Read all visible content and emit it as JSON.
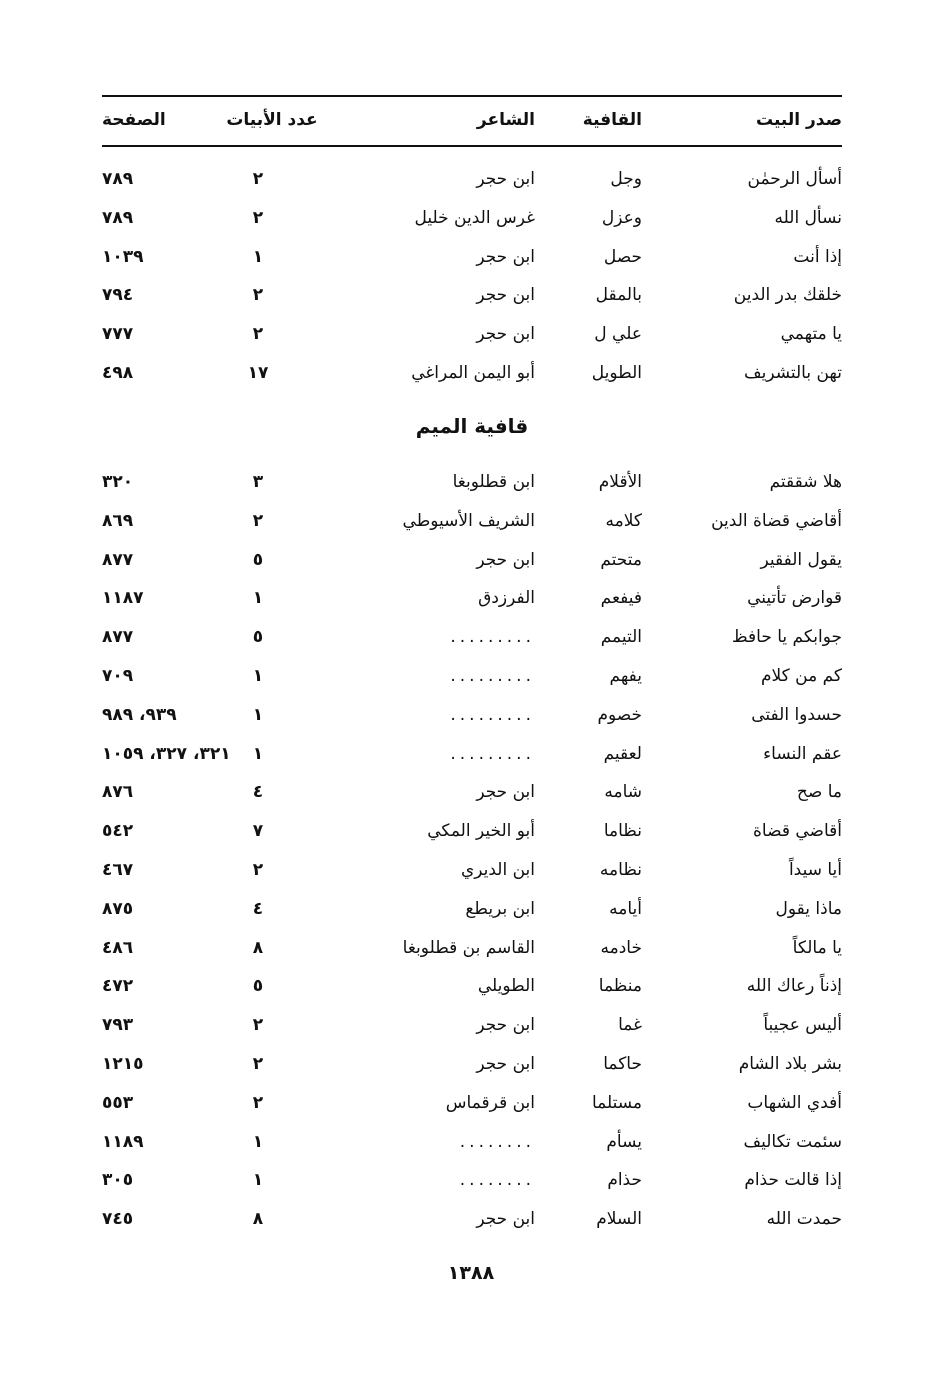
{
  "header": {
    "first_words": "صدر البيت",
    "rhyme": "القافية",
    "poet": "الشاعر",
    "verse_count": "عدد الأبيات",
    "page": "الصفحة"
  },
  "rows_a": [
    {
      "first": "أسأل الرحمٰن",
      "rhyme": "وجل",
      "poet": "ابن حجر",
      "count": "٢",
      "page": "٧٨٩"
    },
    {
      "first": "نسأل الله",
      "rhyme": "وعزل",
      "poet": "غرس الدين خليل",
      "count": "٢",
      "page": "٧٨٩"
    },
    {
      "first": "إذا أنت",
      "rhyme": "حصل",
      "poet": "ابن حجر",
      "count": "١",
      "page": "١٠٣٩"
    },
    {
      "first": "خلقك بدر الدين",
      "rhyme": "بالمقل",
      "poet": "ابن حجر",
      "count": "٢",
      "page": "٧٩٤"
    },
    {
      "first": "يا متهمي",
      "rhyme": "علي ل",
      "poet": "ابن حجر",
      "count": "٢",
      "page": "٧٧٧"
    },
    {
      "first": "تهن بالتشريف",
      "rhyme": "الطويل",
      "poet": "أبو اليمن المراغي",
      "count": "١٧",
      "page": "٤٩٨"
    }
  ],
  "section_title": "قافية الميم",
  "rows_b": [
    {
      "first": "هلا شققتم",
      "rhyme": "الأقلام",
      "poet": "ابن قطلوبغا",
      "count": "٣",
      "page": "٣٢٠"
    },
    {
      "first": "أقاضي قضاة الدين",
      "rhyme": "كلامه",
      "poet": "الشريف الأسيوطي",
      "count": "٢",
      "page": "٨٦٩"
    },
    {
      "first": "يقول الفقير",
      "rhyme": "متحتم",
      "poet": "ابن حجر",
      "count": "٥",
      "page": "٨٧٧"
    },
    {
      "first": "قوارض تأتيني",
      "rhyme": "فيفعم",
      "poet": "الفرزدق",
      "count": "١",
      "page": "١١٨٧"
    },
    {
      "first": "جوابكم يا حافظ",
      "rhyme": "التيمم",
      "poet": ".........",
      "count": "٥",
      "page": "٨٧٧"
    },
    {
      "first": "كم من كلام",
      "rhyme": "يفهم",
      "poet": ".........",
      "count": "١",
      "page": "٧٠٩"
    },
    {
      "first": "حسدوا الفتى",
      "rhyme": "خصوم",
      "poet": ".........",
      "count": "١",
      "page": "٩٣٩، ٩٨٩"
    },
    {
      "first": "عقم النساء",
      "rhyme": "لعقيم",
      "poet": ".........",
      "count": "١",
      "page": "٣٢١، ٣٢٧، ١٠٥٩"
    },
    {
      "first": "ما صح",
      "rhyme": "شامه",
      "poet": "ابن حجر",
      "count": "٤",
      "page": "٨٧٦"
    },
    {
      "first": "أقاضي قضاة",
      "rhyme": "نظاما",
      "poet": "أبو الخير المكي",
      "count": "٧",
      "page": "٥٤٢"
    },
    {
      "first": "أيا سيداً",
      "rhyme": "نظامه",
      "poet": "ابن الديري",
      "count": "٢",
      "page": "٤٦٧"
    },
    {
      "first": "ماذا يقول",
      "rhyme": "أيامه",
      "poet": "ابن بريطع",
      "count": "٤",
      "page": "٨٧٥"
    },
    {
      "first": "يا مالكاً",
      "rhyme": "خادمه",
      "poet": "القاسم بن قطلوبغا",
      "count": "٨",
      "page": "٤٨٦"
    },
    {
      "first": "إذناً رعاك الله",
      "rhyme": "منظما",
      "poet": "الطويلي",
      "count": "٥",
      "page": "٤٧٢"
    },
    {
      "first": "أليس عجيباً",
      "rhyme": "غما",
      "poet": "ابن حجر",
      "count": "٢",
      "page": "٧٩٣"
    },
    {
      "first": "بشر بلاد الشام",
      "rhyme": "حاكما",
      "poet": "ابن حجر",
      "count": "٢",
      "page": "١٢١٥"
    },
    {
      "first": "أفدي الشهاب",
      "rhyme": "مستلما",
      "poet": "ابن قرقماس",
      "count": "٢",
      "page": "٥٥٣"
    },
    {
      "first": "سئمت تكاليف",
      "rhyme": "يسأم",
      "poet": "........",
      "count": "١",
      "page": "١١٨٩"
    },
    {
      "first": "إذا قالت حذام",
      "rhyme": "حذام",
      "poet": "........",
      "count": "١",
      "page": "٣٠٥"
    },
    {
      "first": "حمدت الله",
      "rhyme": "السلام",
      "poet": "ابن حجر",
      "count": "٨",
      "page": "٧٤٥"
    }
  ],
  "page_number": "١٣٨٨"
}
